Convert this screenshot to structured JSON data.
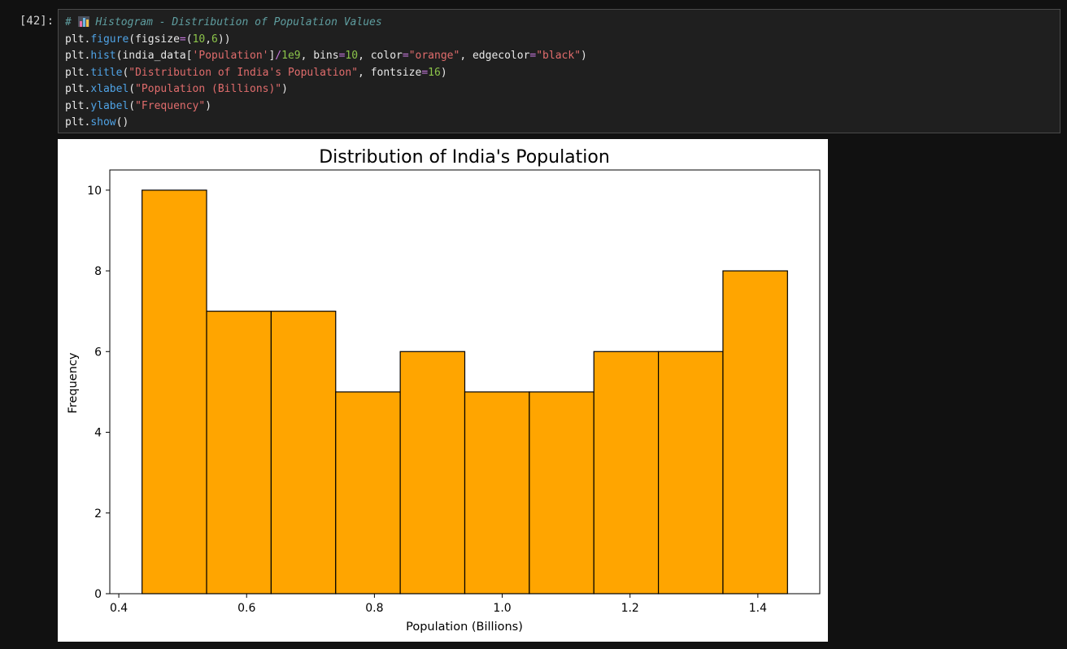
{
  "cell": {
    "prompt": "[42]:",
    "code": {
      "line1_comment_prefix": "# ",
      "line1_comment_text": "Histogram - Distribution of Population Values",
      "line1_icon": "bar-chart-emoji-icon",
      "line2": "plt.figure(figsize=(10,6))",
      "line3": "plt.hist(india_data['Population']/1e9, bins=10, color=\"orange\", edgecolor=\"black\")",
      "line4": "plt.title(\"Distribution of India's Population\", fontsize=16)",
      "line5": "plt.xlabel(\"Population (Billions)\")",
      "line6": "plt.ylabel(\"Frequency\")",
      "line7": "plt.show()"
    }
  },
  "chart_data": {
    "type": "bar",
    "title": "Distribution of India's Population",
    "xlabel": "Population (Billions)",
    "ylabel": "Frequency",
    "bin_edges": [
      0.4364,
      0.5374,
      0.6384,
      0.7394,
      0.8404,
      0.9414,
      1.0424,
      1.1434,
      1.2444,
      1.3454,
      1.4464
    ],
    "values": [
      10,
      7,
      7,
      5,
      6,
      5,
      5,
      6,
      6,
      8
    ],
    "xlim": [
      0.3859,
      1.4969
    ],
    "ylim": [
      0,
      10.5
    ],
    "xticks": [
      0.4,
      0.6,
      0.8,
      1.0,
      1.2,
      1.4
    ],
    "xtick_labels": [
      "0.4",
      "0.6",
      "0.8",
      "1.0",
      "1.2",
      "1.4"
    ],
    "yticks": [
      0,
      2,
      4,
      6,
      8,
      10
    ],
    "ytick_labels": [
      "0",
      "2",
      "4",
      "6",
      "8",
      "10"
    ],
    "bar_color": "#ffa500",
    "edge_color": "#000000",
    "grid": false
  }
}
